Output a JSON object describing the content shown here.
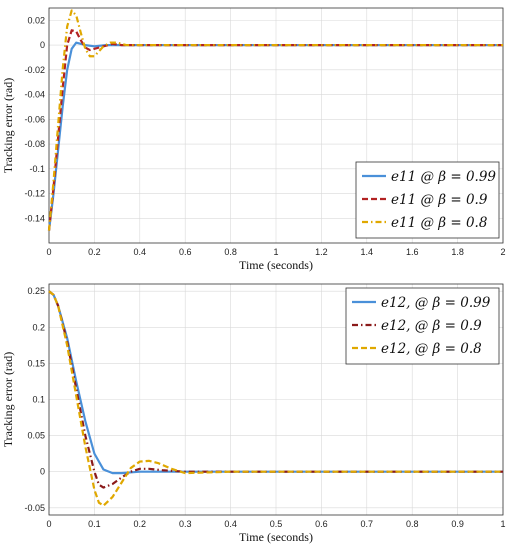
{
  "chart_data": [
    {
      "type": "line",
      "xlabel": "Time (seconds)",
      "ylabel": "Tracking error (rad)",
      "xlim": [
        0,
        2
      ],
      "ylim": [
        -0.16,
        0.03
      ],
      "xticks": [
        "0",
        "0.2",
        "0.4",
        "0.6",
        "0.8",
        "1",
        "1.2",
        "1.4",
        "1.6",
        "1.8",
        "2"
      ],
      "yticks": [
        "0.02",
        "0",
        "-0.02",
        "-0.04",
        "-0.06",
        "-0.08",
        "-0.1",
        "-0.12",
        "-0.14"
      ],
      "grid": true,
      "legend_position": "bottom-right",
      "legend": [
        "e11 @ β = 0.99",
        "e11 @ β = 0.9",
        "e11 @ β = 0.8"
      ],
      "series": [
        {
          "name": "e11 @ β = 0.99",
          "color": "#4a90d9",
          "dash": "solid",
          "x": [
            0,
            0.02,
            0.04,
            0.06,
            0.08,
            0.1,
            0.12,
            0.14,
            0.16,
            0.2,
            0.25,
            0.3,
            0.4,
            0.6,
            1.0,
            2.0
          ],
          "y": [
            -0.15,
            -0.12,
            -0.085,
            -0.05,
            -0.02,
            -0.003,
            0.002,
            0.001,
            0.0,
            -0.001,
            0.0,
            0.0,
            0.0,
            0.0,
            0.0,
            0.0
          ]
        },
        {
          "name": "e11 @ β = 0.9",
          "color": "#b22222",
          "dash": "dashed",
          "x": [
            0,
            0.02,
            0.04,
            0.06,
            0.08,
            0.1,
            0.12,
            0.14,
            0.16,
            0.18,
            0.2,
            0.24,
            0.28,
            0.32,
            0.4,
            0.6,
            1.0,
            2.0
          ],
          "y": [
            -0.15,
            -0.115,
            -0.075,
            -0.035,
            0.0,
            0.012,
            0.011,
            0.004,
            -0.002,
            -0.004,
            -0.003,
            -0.001,
            0.001,
            0.0,
            0.0,
            0.0,
            0.0,
            0.0
          ]
        },
        {
          "name": "e11 @ β = 0.8",
          "color": "#e0a800",
          "dash": "dashdot",
          "x": [
            0,
            0.02,
            0.04,
            0.06,
            0.08,
            0.1,
            0.12,
            0.14,
            0.16,
            0.18,
            0.2,
            0.22,
            0.24,
            0.27,
            0.3,
            0.34,
            0.4,
            0.6,
            1.0,
            2.0
          ],
          "y": [
            -0.15,
            -0.11,
            -0.065,
            -0.02,
            0.015,
            0.028,
            0.024,
            0.01,
            -0.003,
            -0.009,
            -0.009,
            -0.005,
            -0.001,
            0.002,
            0.002,
            0.0,
            0.0,
            0.0,
            0.0,
            0.0
          ]
        }
      ]
    },
    {
      "type": "line",
      "xlabel": "Time (seconds)",
      "ylabel": "Tracking error (rad)",
      "xlim": [
        0,
        1
      ],
      "ylim": [
        -0.06,
        0.26
      ],
      "xticks": [
        "0",
        "0.1",
        "0.2",
        "0.3",
        "0.4",
        "0.5",
        "0.6",
        "0.7",
        "0.8",
        "0.9",
        "1"
      ],
      "yticks": [
        "0.25",
        "0.2",
        "0.15",
        "0.1",
        "0.05",
        "0",
        "-0.05"
      ],
      "grid": true,
      "legend_position": "top-right",
      "legend": [
        "e12, @ β = 0.99",
        "e12, @ β = 0.9",
        "e12, @ β = 0.8"
      ],
      "series": [
        {
          "name": "e12, @ β = 0.99",
          "color": "#4a90d9",
          "dash": "solid",
          "x": [
            0,
            0.01,
            0.02,
            0.04,
            0.06,
            0.08,
            0.1,
            0.12,
            0.14,
            0.16,
            0.2,
            0.25,
            0.3,
            0.5,
            1.0
          ],
          "y": [
            0.25,
            0.245,
            0.23,
            0.185,
            0.125,
            0.07,
            0.025,
            0.003,
            -0.002,
            -0.002,
            0.0,
            0.0,
            0.0,
            0.0,
            0.0
          ]
        },
        {
          "name": "e12, @ β = 0.9",
          "color": "#8b1a1a",
          "dash": "dashdot",
          "x": [
            0,
            0.01,
            0.02,
            0.04,
            0.06,
            0.08,
            0.1,
            0.11,
            0.12,
            0.14,
            0.16,
            0.18,
            0.2,
            0.22,
            0.25,
            0.3,
            0.35,
            0.5,
            1.0
          ],
          "y": [
            0.25,
            0.245,
            0.23,
            0.18,
            0.115,
            0.05,
            0.0,
            -0.018,
            -0.022,
            -0.017,
            -0.008,
            0.0,
            0.004,
            0.004,
            0.002,
            0.0,
            0.0,
            0.0,
            0.0
          ]
        },
        {
          "name": "e12, @ β = 0.8",
          "color": "#e0a800",
          "dash": "dashed",
          "x": [
            0,
            0.01,
            0.02,
            0.04,
            0.06,
            0.08,
            0.1,
            0.11,
            0.12,
            0.14,
            0.16,
            0.18,
            0.2,
            0.22,
            0.24,
            0.27,
            0.3,
            0.35,
            0.4,
            0.5,
            1.0
          ],
          "y": [
            0.25,
            0.245,
            0.23,
            0.175,
            0.105,
            0.035,
            -0.025,
            -0.043,
            -0.047,
            -0.035,
            -0.015,
            0.005,
            0.014,
            0.015,
            0.012,
            0.004,
            -0.002,
            -0.001,
            0.0,
            0.0,
            0.0
          ]
        }
      ]
    }
  ]
}
